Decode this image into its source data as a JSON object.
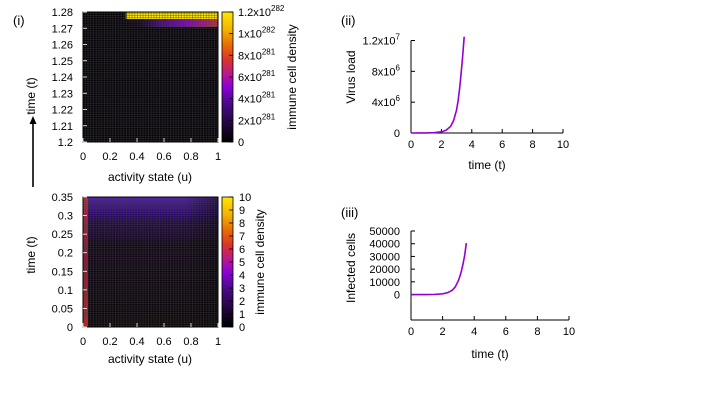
{
  "panels": {
    "i": "(i)",
    "ii": "(ii)",
    "iii": "(iii)"
  },
  "arrow_label": "",
  "chart_data": [
    {
      "id": "heatmap-top",
      "type": "heatmap",
      "title": "",
      "xlabel": "activity state (u)",
      "ylabel": "time (t)",
      "xlim": [
        0,
        1
      ],
      "ylim": [
        1.2,
        1.28
      ],
      "x_ticks": [
        "0",
        "0.2",
        "0.4",
        "0.6",
        "0.8",
        "1"
      ],
      "y_ticks": [
        "1.2",
        "1.21",
        "1.22",
        "1.23",
        "1.24",
        "1.25",
        "1.26",
        "1.27",
        "1.28"
      ],
      "colorbar": {
        "label": "immune cell density",
        "range": [
          0,
          1.2e+282
        ],
        "ticks": [
          {
            "value": 0,
            "mant": "0",
            "exp": ""
          },
          {
            "value": 2e+281,
            "mant": "2x10",
            "exp": "281"
          },
          {
            "value": 4e+281,
            "mant": "4x10",
            "exp": "281"
          },
          {
            "value": 6e+281,
            "mant": "6x10",
            "exp": "281"
          },
          {
            "value": 8e+281,
            "mant": "8x10",
            "exp": "281"
          },
          {
            "value": 1e+282,
            "mant": "1x10",
            "exp": "282"
          },
          {
            "value": 1.2e+282,
            "mant": "1.2x10",
            "exp": "282"
          }
        ]
      },
      "notes": "density ~0 everywhere except near t=1.28 for u>0.3, where it peaks at ~1.2x10^282"
    },
    {
      "id": "heatmap-bottom",
      "type": "heatmap",
      "title": "",
      "xlabel": "activity state (u)",
      "ylabel": "time (t)",
      "xlim": [
        0,
        1
      ],
      "ylim": [
        0,
        0.35
      ],
      "x_ticks": [
        "0",
        "0.2",
        "0.4",
        "0.6",
        "0.8",
        "1"
      ],
      "y_ticks": [
        "0",
        "0.05",
        "0.1",
        "0.15",
        "0.2",
        "0.25",
        "0.3",
        "0.35"
      ],
      "colorbar": {
        "label": "immune cell density",
        "range": [
          0,
          10
        ],
        "ticks": [
          "0",
          "1",
          "2",
          "3",
          "4",
          "5",
          "6",
          "7",
          "8",
          "9",
          "10"
        ]
      },
      "notes": "dark (~0.5) interior, brighter (~3) strip at u=0, violet-blue (~2-3) band near t=0.35"
    },
    {
      "id": "virus-load",
      "type": "line",
      "title": "",
      "xlabel": "time (t)",
      "ylabel": "Virus load",
      "xlim": [
        0,
        10
      ],
      "ylim": [
        0,
        12000000
      ],
      "x_ticks": [
        "0",
        "2",
        "4",
        "6",
        "8",
        "10"
      ],
      "y_ticks": [
        {
          "value": 0,
          "mant": "0",
          "exp": ""
        },
        {
          "value": 4000000,
          "mant": "4x10",
          "exp": "6"
        },
        {
          "value": 8000000,
          "mant": "8x10",
          "exp": "6"
        },
        {
          "value": 12000000,
          "mant": "1.2x10",
          "exp": "7"
        }
      ],
      "series": [
        {
          "name": "virus load",
          "x": [
            0,
            0.5,
            1.0,
            1.5,
            2.0,
            2.3,
            2.6,
            2.8,
            3.0,
            3.1,
            3.2,
            3.3,
            3.4,
            3.5
          ],
          "y": [
            0,
            3000,
            12000,
            40000,
            150000,
            350000,
            850000,
            1600000,
            3000000,
            4200000,
            5800000,
            7800000,
            10000000,
            12500000
          ]
        }
      ]
    },
    {
      "id": "infected-cells",
      "type": "line",
      "title": "",
      "xlabel": "time (t)",
      "ylabel": "Infected cells",
      "xlim": [
        0,
        10
      ],
      "ylim": [
        -20000,
        50000
      ],
      "x_ticks": [
        "0",
        "2",
        "4",
        "6",
        "8",
        "10"
      ],
      "y_ticks": [
        "0",
        "10000",
        "20000",
        "30000",
        "40000",
        "50000"
      ],
      "series": [
        {
          "name": "infected cells",
          "x": [
            0,
            0.5,
            1.0,
            1.5,
            2.0,
            2.3,
            2.6,
            2.8,
            3.0,
            3.1,
            3.2,
            3.3,
            3.4,
            3.5
          ],
          "y": [
            0,
            10,
            40,
            150,
            600,
            1400,
            3300,
            6000,
            11000,
            14500,
            19000,
            24500,
            31000,
            40500
          ]
        }
      ]
    }
  ],
  "colors": {
    "line": "#9400d3",
    "heatmap_bg": "#050208",
    "gradient": [
      "#000000",
      "#1c0530",
      "#4a0a8a",
      "#8a00d8",
      "#b81890",
      "#d8332c",
      "#e86a05",
      "#f2b100",
      "#ffe600"
    ]
  }
}
